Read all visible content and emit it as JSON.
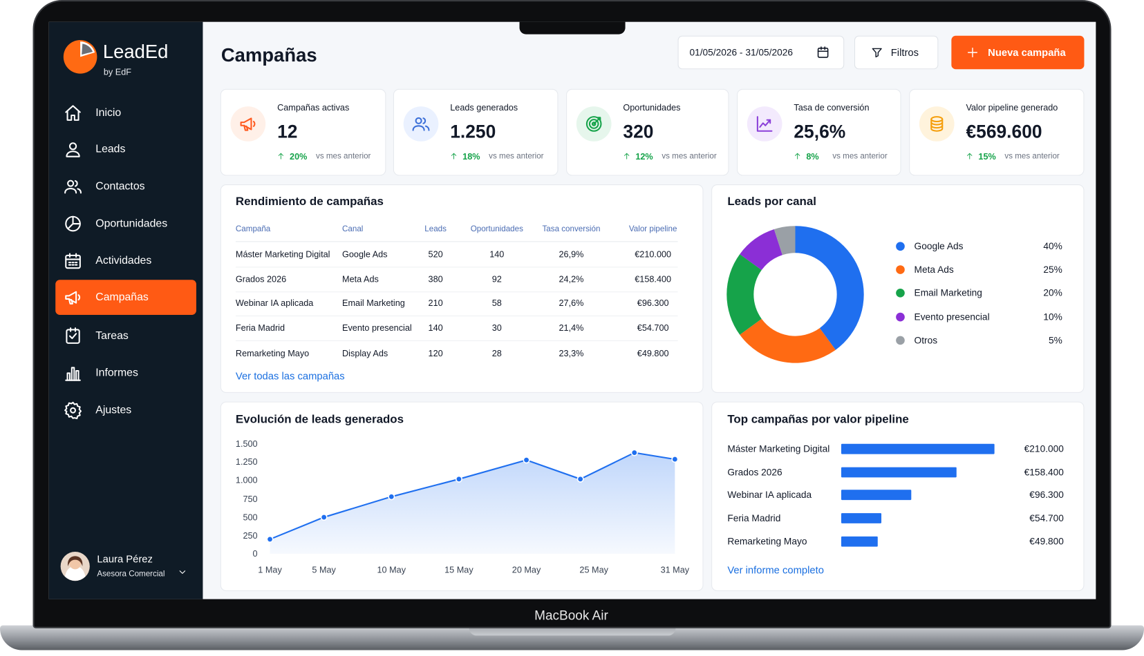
{
  "brand": {
    "name": "LeadEd",
    "sub": "by EdF"
  },
  "nav": [
    {
      "label": "Inicio",
      "active": false
    },
    {
      "label": "Leads",
      "active": false
    },
    {
      "label": "Contactos",
      "active": false
    },
    {
      "label": "Oportunidades",
      "active": false
    },
    {
      "label": "Actividades",
      "active": false
    },
    {
      "label": "Campañas",
      "active": true
    },
    {
      "label": "Tareas",
      "active": false
    },
    {
      "label": "Informes",
      "active": false
    },
    {
      "label": "Ajustes",
      "active": false
    }
  ],
  "user": {
    "name": "Laura Pérez",
    "role": "Asesora Comercial"
  },
  "header": {
    "title": "Campañas",
    "date_range": "01/05/2026 - 31/05/2026",
    "filters": "Filtros",
    "new_button": "Nueva campaña"
  },
  "kpis": [
    {
      "label": "Campañas activas",
      "value": "12",
      "change": "20%",
      "note": "vs mes anterior",
      "color": "#ff5a1f",
      "bg": "#fff0e8"
    },
    {
      "label": "Leads generados",
      "value": "1.250",
      "change": "18%",
      "note": "vs mes anterior",
      "color": "#3b6fd8",
      "bg": "#eaf1ff"
    },
    {
      "label": "Oportunidades",
      "value": "320",
      "change": "12%",
      "note": "vs mes anterior",
      "color": "#16a34a",
      "bg": "#e6f6ec"
    },
    {
      "label": "Tasa de conversión",
      "value": "25,6%",
      "change": "8%",
      "note": "vs mes anterior",
      "color": "#8b3fd9",
      "bg": "#f3eafd"
    },
    {
      "label": "Valor pipeline generado",
      "value": "€569.600",
      "change": "15%",
      "note": "vs mes anterior",
      "color": "#f59e0b",
      "bg": "#fff3dc"
    }
  ],
  "performance": {
    "title": "Rendimiento de campañas",
    "columns": [
      "Campaña",
      "Canal",
      "Leads",
      "Oportunidades",
      "Tasa conversión",
      "Valor pipeline"
    ],
    "rows": [
      [
        "Máster Marketing Digital",
        "Google Ads",
        "520",
        "140",
        "26,9%",
        "€210.000"
      ],
      [
        "Grados 2026",
        "Meta Ads",
        "380",
        "92",
        "24,2%",
        "€158.400"
      ],
      [
        "Webinar IA aplicada",
        "Email Marketing",
        "210",
        "58",
        "27,6%",
        "€96.300"
      ],
      [
        "Feria Madrid",
        "Evento presencial",
        "140",
        "30",
        "21,4%",
        "€54.700"
      ],
      [
        "Remarketing Mayo",
        "Display Ads",
        "120",
        "28",
        "23,3%",
        "€49.800"
      ]
    ],
    "link": "Ver todas las campañas"
  },
  "chart_data": [
    {
      "type": "pie",
      "title": "Leads por canal",
      "categories": [
        "Google Ads",
        "Meta Ads",
        "Email Marketing",
        "Evento presencial",
        "Otros"
      ],
      "values": [
        40,
        25,
        20,
        10,
        5
      ],
      "value_labels": [
        "40%",
        "25%",
        "20%",
        "10%",
        "5%"
      ],
      "colors": [
        "#1f6fef",
        "#ff6a13",
        "#16a34a",
        "#8b2fd6",
        "#9aa0a6"
      ]
    },
    {
      "type": "line",
      "title": "Evolución de leads generados",
      "x": [
        1,
        5,
        10,
        15,
        20,
        24,
        28,
        31
      ],
      "values": [
        200,
        500,
        780,
        1020,
        1280,
        1020,
        1380,
        1290
      ],
      "color": "#1f6fef",
      "xlim": [
        1,
        31
      ],
      "xticks": [
        {
          "value": 1,
          "label": "1 May"
        },
        {
          "value": 5,
          "label": "5 May"
        },
        {
          "value": 10,
          "label": "10 May"
        },
        {
          "value": 15,
          "label": "15 May"
        },
        {
          "value": 20,
          "label": "20 May"
        },
        {
          "value": 25,
          "label": "25 May"
        },
        {
          "value": 31,
          "label": "31 May"
        }
      ],
      "ylim": [
        0,
        1500
      ],
      "yticks": [
        0,
        250,
        500,
        750,
        {
          "value": 1000,
          "label": "1.000"
        },
        {
          "value": 1250,
          "label": "1.250"
        },
        {
          "value": 1500,
          "label": "1.500"
        }
      ],
      "grid": false
    },
    {
      "type": "bar",
      "title": "Top campañas por valor pipeline",
      "categories": [
        "Máster Marketing Digital",
        "Grados 2026",
        "Webinar IA aplicada",
        "Feria Madrid",
        "Remarketing Mayo"
      ],
      "values": [
        210000,
        158400,
        96300,
        54700,
        49800
      ],
      "value_labels": [
        "€210.000",
        "€158.400",
        "€96.300",
        "€54.700",
        "€49.800"
      ],
      "color": "#1f6fef",
      "xlim": [
        0,
        210000
      ],
      "link": "Ver informe completo"
    }
  ],
  "device": "MacBook Air"
}
